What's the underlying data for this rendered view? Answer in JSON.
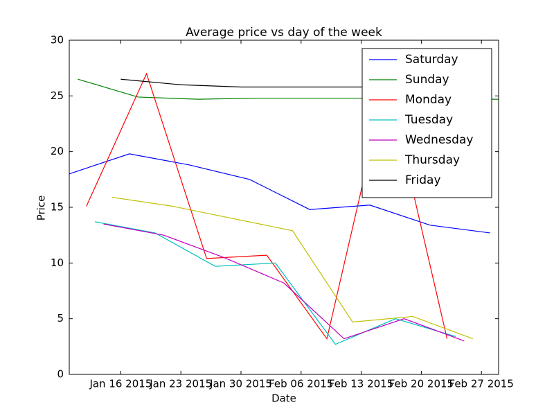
{
  "chart_data": {
    "type": "line",
    "title": "Average price vs day of the week",
    "x_label": "Date",
    "y_label": "Price",
    "xlim": [
      "2015-01-10",
      "2015-03-01"
    ],
    "xticks": [
      {
        "value": "2015-01-16",
        "label": "Jan 16 2015"
      },
      {
        "value": "2015-01-23",
        "label": "Jan 23 2015"
      },
      {
        "value": "2015-01-30",
        "label": "Jan 30 2015"
      },
      {
        "value": "2015-02-06",
        "label": "Feb 06 2015"
      },
      {
        "value": "2015-02-13",
        "label": "Feb 13 2015"
      },
      {
        "value": "2015-02-20",
        "label": "Feb 20 2015"
      },
      {
        "value": "2015-02-27",
        "label": "Feb 27 2015"
      }
    ],
    "ylim": [
      0,
      30
    ],
    "yticks": [
      0,
      5,
      10,
      15,
      20,
      25,
      30
    ],
    "legend": "upper-right",
    "series": [
      {
        "name": "Saturday",
        "color": "#0000ff",
        "x": [
          "2015-01-10",
          "2015-01-17",
          "2015-01-24",
          "2015-01-31",
          "2015-02-07",
          "2015-02-14",
          "2015-02-21",
          "2015-02-28"
        ],
        "values": [
          18.0,
          19.8,
          18.8,
          17.5,
          14.8,
          15.2,
          13.4,
          12.7
        ]
      },
      {
        "name": "Sunday",
        "color": "#008000",
        "x": [
          "2015-01-11",
          "2015-01-18",
          "2015-01-25",
          "2015-02-01",
          "2015-02-08",
          "2015-02-15",
          "2015-02-22",
          "2015-03-01"
        ],
        "values": [
          26.5,
          24.9,
          24.7,
          24.8,
          24.8,
          24.8,
          24.7,
          24.7
        ]
      },
      {
        "name": "Monday",
        "color": "#ff0000",
        "x": [
          "2015-01-12",
          "2015-01-19",
          "2015-01-26",
          "2015-02-02",
          "2015-02-09",
          "2015-02-16",
          "2015-02-23"
        ],
        "values": [
          15.1,
          27.0,
          10.4,
          10.7,
          3.2,
          26.5,
          3.2
        ]
      },
      {
        "name": "Tuesday",
        "color": "#00bfbf",
        "x": [
          "2015-01-13",
          "2015-01-20",
          "2015-01-27",
          "2015-02-03",
          "2015-02-10",
          "2015-02-17",
          "2015-02-24"
        ],
        "values": [
          13.7,
          12.7,
          9.7,
          10.0,
          2.7,
          5.0,
          3.4
        ]
      },
      {
        "name": "Wednesday",
        "color": "#bf00bf",
        "x": [
          "2015-01-14",
          "2015-01-21",
          "2015-01-28",
          "2015-02-04",
          "2015-02-11",
          "2015-02-18",
          "2015-02-25"
        ],
        "values": [
          13.5,
          12.5,
          10.5,
          8.2,
          3.2,
          5.0,
          3.0
        ]
      },
      {
        "name": "Thursday",
        "color": "#bfbf00",
        "x": [
          "2015-01-15",
          "2015-01-22",
          "2015-01-29",
          "2015-02-05",
          "2015-02-12",
          "2015-02-19",
          "2015-02-26"
        ],
        "values": [
          15.9,
          15.1,
          14.0,
          12.9,
          4.7,
          5.2,
          3.2
        ]
      },
      {
        "name": "Friday",
        "color": "#000000",
        "x": [
          "2015-01-16",
          "2015-01-23",
          "2015-01-30",
          "2015-02-06",
          "2015-02-13",
          "2015-02-20",
          "2015-02-27"
        ],
        "values": [
          26.5,
          26.0,
          25.8,
          25.8,
          25.8,
          25.8,
          25.8
        ]
      }
    ]
  }
}
